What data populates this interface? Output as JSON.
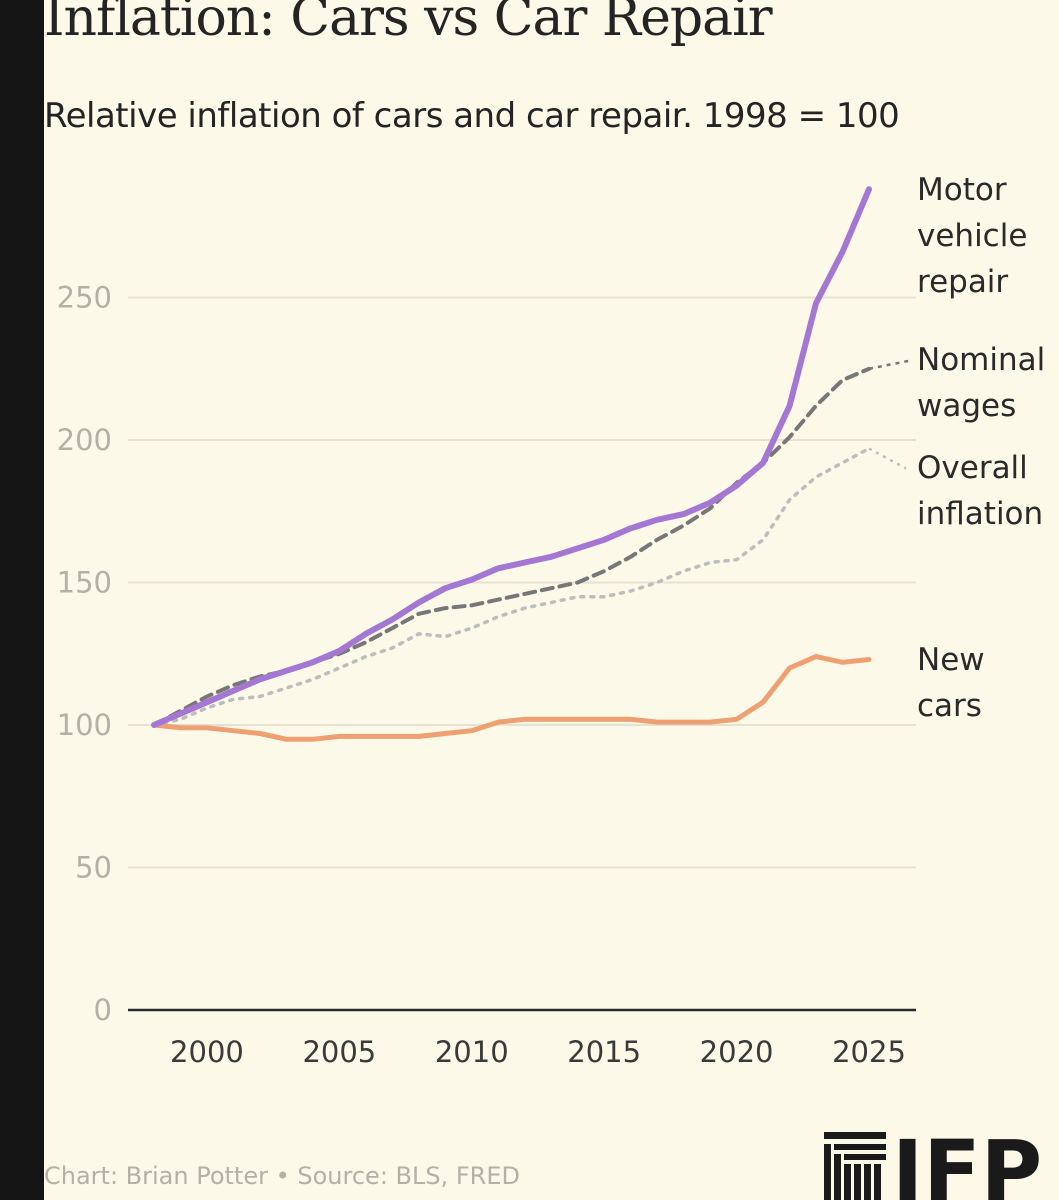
{
  "title": "Inflation: Cars vs Car Repair",
  "subtitle": "Relative inflation of cars and car repair. 1998 = 100",
  "footer": "Chart: Brian Potter • Source: BLS, FRED",
  "logo": {
    "text": "IFP",
    "icon": "stacked-columns-logo-icon"
  },
  "colors": {
    "background": "#fdf9e9",
    "repair": "#a477d2",
    "wages": "#777777",
    "inflation": "#bdbdbd",
    "new_cars": "#eea072",
    "grid": "#e6e1d1",
    "axis": "#2a2a2a"
  },
  "chart_data": {
    "type": "line",
    "title": "Inflation: Cars vs Car Repair",
    "subtitle": "Relative inflation of cars and car repair. 1998 = 100",
    "xlabel": "",
    "ylabel": "",
    "xlim": [
      1997,
      2026
    ],
    "ylim": [
      0,
      290
    ],
    "xticks": [
      2000,
      2005,
      2010,
      2015,
      2020,
      2025
    ],
    "yticks": [
      0,
      50,
      100,
      150,
      200,
      250
    ],
    "grid": true,
    "legend": "direct labels at right end of lines",
    "x": [
      1998,
      1999,
      2000,
      2001,
      2002,
      2003,
      2004,
      2005,
      2006,
      2007,
      2008,
      2009,
      2010,
      2011,
      2012,
      2013,
      2014,
      2015,
      2016,
      2017,
      2018,
      2019,
      2020,
      2021,
      2022,
      2023,
      2024,
      2025
    ],
    "series": [
      {
        "key": "repair",
        "name": "Motor vehicle repair",
        "label_lines": [
          "Motor",
          "vehicle",
          "repair"
        ],
        "style": "solid",
        "values": [
          100,
          104,
          108,
          112,
          116,
          119,
          122,
          126,
          132,
          137,
          143,
          148,
          151,
          155,
          157,
          159,
          162,
          165,
          169,
          172,
          174,
          178,
          184,
          192,
          212,
          248,
          266,
          288
        ]
      },
      {
        "key": "wages",
        "name": "Nominal wages",
        "label_lines": [
          "Nominal",
          "wages"
        ],
        "style": "dashed",
        "values": [
          100,
          105,
          110,
          114,
          117,
          119,
          122,
          125,
          129,
          134,
          139,
          141,
          142,
          144,
          146,
          148,
          150,
          154,
          159,
          165,
          170,
          176,
          185,
          192,
          201,
          212,
          221,
          225
        ]
      },
      {
        "key": "inflation",
        "name": "Overall inflation",
        "label_lines": [
          "Overall",
          "inflation"
        ],
        "style": "dotted",
        "values": [
          100,
          102,
          106,
          109,
          110,
          113,
          116,
          120,
          124,
          127,
          132,
          131,
          134,
          138,
          141,
          143,
          145,
          145,
          147,
          150,
          154,
          157,
          158,
          165,
          179,
          187,
          192,
          197
        ]
      },
      {
        "key": "new_cars",
        "name": "New cars",
        "label_lines": [
          "New",
          "cars"
        ],
        "style": "solid",
        "values": [
          100,
          99,
          99,
          98,
          97,
          95,
          95,
          96,
          96,
          96,
          96,
          97,
          98,
          101,
          102,
          102,
          102,
          102,
          102,
          101,
          101,
          101,
          102,
          108,
          120,
          124,
          122,
          123
        ]
      }
    ]
  }
}
